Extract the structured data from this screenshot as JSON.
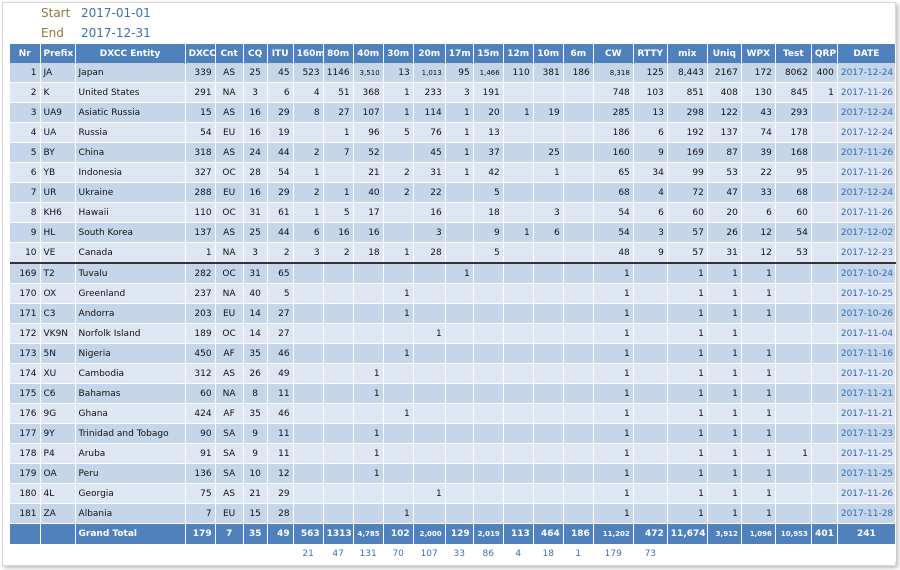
{
  "meta": {
    "start_label": "Start",
    "start": "2017-01-01",
    "end_label": "End",
    "end": "2017-12-31"
  },
  "table": {
    "header": [
      "Nr",
      "Prefix",
      "DXCC Entity",
      "DXCC",
      "Cnt",
      "CQ",
      "ITU",
      "160m",
      "80m",
      "40m",
      "30m",
      "20m",
      "17m",
      "15m",
      "12m",
      "10m",
      "6m",
      "CW",
      "RTTY",
      "mix",
      "Uniq",
      "WPX",
      "Test",
      "QRP",
      "DATE"
    ],
    "rows": [
      [
        1,
        "JA",
        "Japan",
        339,
        "AS",
        25,
        45,
        523,
        1146,
        "3,510",
        13,
        "1,013",
        95,
        "1,466",
        110,
        381,
        186,
        "8,318",
        125,
        "8,443",
        2167,
        172,
        8062,
        400,
        "2017-12-24"
      ],
      [
        2,
        "K",
        "United States",
        291,
        "NA",
        3,
        6,
        4,
        51,
        368,
        1,
        233,
        3,
        191,
        null,
        null,
        null,
        748,
        103,
        851,
        408,
        130,
        845,
        1,
        "2017-11-26"
      ],
      [
        3,
        "UA9",
        "Asiatic Russia",
        15,
        "AS",
        16,
        29,
        8,
        27,
        107,
        1,
        114,
        1,
        20,
        1,
        19,
        null,
        285,
        13,
        298,
        122,
        43,
        293,
        null,
        "2017-12-24"
      ],
      [
        4,
        "UA",
        "Russia",
        54,
        "EU",
        16,
        19,
        null,
        1,
        96,
        5,
        76,
        1,
        13,
        null,
        null,
        null,
        186,
        6,
        192,
        137,
        74,
        178,
        null,
        "2017-12-24"
      ],
      [
        5,
        "BY",
        "China",
        318,
        "AS",
        24,
        44,
        2,
        7,
        52,
        null,
        45,
        1,
        37,
        null,
        25,
        null,
        160,
        9,
        169,
        87,
        39,
        168,
        null,
        "2017-11-26"
      ],
      [
        6,
        "YB",
        "Indonesia",
        327,
        "OC",
        28,
        54,
        1,
        null,
        21,
        2,
        31,
        1,
        42,
        null,
        1,
        null,
        65,
        34,
        99,
        53,
        22,
        95,
        null,
        "2017-11-26"
      ],
      [
        7,
        "UR",
        "Ukraine",
        288,
        "EU",
        16,
        29,
        2,
        1,
        40,
        2,
        22,
        null,
        5,
        null,
        null,
        null,
        68,
        4,
        72,
        47,
        33,
        68,
        null,
        "2017-12-24"
      ],
      [
        8,
        "KH6",
        "Hawaii",
        110,
        "OC",
        31,
        61,
        1,
        5,
        17,
        null,
        16,
        null,
        18,
        null,
        3,
        null,
        54,
        6,
        60,
        20,
        6,
        60,
        null,
        "2017-11-26"
      ],
      [
        9,
        "HL",
        "South Korea",
        137,
        "AS",
        25,
        44,
        6,
        16,
        16,
        null,
        3,
        null,
        9,
        1,
        6,
        null,
        54,
        3,
        57,
        26,
        12,
        54,
        null,
        "2017-12-02"
      ],
      [
        10,
        "VE",
        "Canada",
        1,
        "NA",
        3,
        2,
        3,
        2,
        18,
        1,
        28,
        null,
        5,
        null,
        null,
        null,
        48,
        9,
        57,
        31,
        12,
        53,
        null,
        "2017-12-23"
      ],
      [
        169,
        "T2",
        "Tuvalu",
        282,
        "OC",
        31,
        65,
        null,
        null,
        null,
        null,
        null,
        1,
        null,
        null,
        null,
        null,
        1,
        null,
        1,
        1,
        1,
        null,
        null,
        "2017-10-24"
      ],
      [
        170,
        "OX",
        "Greenland",
        237,
        "NA",
        40,
        5,
        null,
        null,
        null,
        1,
        null,
        null,
        null,
        null,
        null,
        null,
        1,
        null,
        1,
        1,
        1,
        null,
        null,
        "2017-10-25"
      ],
      [
        171,
        "C3",
        "Andorra",
        203,
        "EU",
        14,
        27,
        null,
        null,
        null,
        1,
        null,
        null,
        null,
        null,
        null,
        null,
        1,
        null,
        1,
        1,
        1,
        null,
        null,
        "2017-10-26"
      ],
      [
        172,
        "VK9N",
        "Norfolk Island",
        189,
        "OC",
        14,
        27,
        null,
        null,
        null,
        null,
        1,
        null,
        null,
        null,
        null,
        null,
        1,
        null,
        1,
        1,
        null,
        null,
        null,
        "2017-11-04"
      ],
      [
        173,
        "5N",
        "Nigeria",
        450,
        "AF",
        35,
        46,
        null,
        null,
        null,
        1,
        null,
        null,
        null,
        null,
        null,
        null,
        1,
        null,
        1,
        1,
        1,
        null,
        null,
        "2017-11-16"
      ],
      [
        174,
        "XU",
        "Cambodia",
        312,
        "AS",
        26,
        49,
        null,
        null,
        1,
        null,
        null,
        null,
        null,
        null,
        null,
        null,
        1,
        null,
        1,
        1,
        1,
        null,
        null,
        "2017-11-20"
      ],
      [
        175,
        "C6",
        "Bahamas",
        60,
        "NA",
        8,
        11,
        null,
        null,
        1,
        null,
        null,
        null,
        null,
        null,
        null,
        null,
        1,
        null,
        1,
        1,
        1,
        null,
        null,
        "2017-11-21"
      ],
      [
        176,
        "9G",
        "Ghana",
        424,
        "AF",
        35,
        46,
        null,
        null,
        null,
        1,
        null,
        null,
        null,
        null,
        null,
        null,
        1,
        null,
        1,
        1,
        1,
        null,
        null,
        "2017-11-21"
      ],
      [
        177,
        "9Y",
        "Trinidad and Tobago",
        90,
        "SA",
        9,
        11,
        null,
        null,
        1,
        null,
        null,
        null,
        null,
        null,
        null,
        null,
        1,
        null,
        1,
        1,
        1,
        null,
        null,
        "2017-11-23"
      ],
      [
        178,
        "P4",
        "Aruba",
        91,
        "SA",
        9,
        11,
        null,
        null,
        1,
        null,
        null,
        null,
        null,
        null,
        null,
        null,
        1,
        null,
        1,
        1,
        1,
        1,
        null,
        "2017-11-25"
      ],
      [
        179,
        "OA",
        "Peru",
        136,
        "SA",
        10,
        12,
        null,
        null,
        1,
        null,
        null,
        null,
        null,
        null,
        null,
        null,
        1,
        null,
        1,
        1,
        1,
        null,
        null,
        "2017-11-25"
      ],
      [
        180,
        "4L",
        "Georgia",
        75,
        "AS",
        21,
        29,
        null,
        null,
        null,
        null,
        1,
        null,
        null,
        null,
        null,
        null,
        1,
        null,
        1,
        1,
        1,
        null,
        null,
        "2017-11-26"
      ],
      [
        181,
        "ZA",
        "Albania",
        7,
        "EU",
        15,
        28,
        null,
        null,
        null,
        1,
        null,
        null,
        null,
        null,
        null,
        null,
        1,
        null,
        1,
        1,
        1,
        null,
        null,
        "2017-11-28"
      ]
    ],
    "total": [
      null,
      null,
      "Grand Total",
      179,
      7,
      35,
      49,
      563,
      1313,
      "4,785",
      102,
      "2,000",
      129,
      "2,019",
      113,
      464,
      186,
      "11,202",
      472,
      "11,674",
      "3,912",
      "1,096",
      "10,953",
      401,
      241
    ],
    "footer": [
      null,
      null,
      null,
      null,
      null,
      null,
      null,
      21,
      47,
      131,
      70,
      107,
      33,
      86,
      4,
      18,
      1,
      179,
      73,
      null,
      null,
      null,
      null,
      null,
      null
    ]
  }
}
